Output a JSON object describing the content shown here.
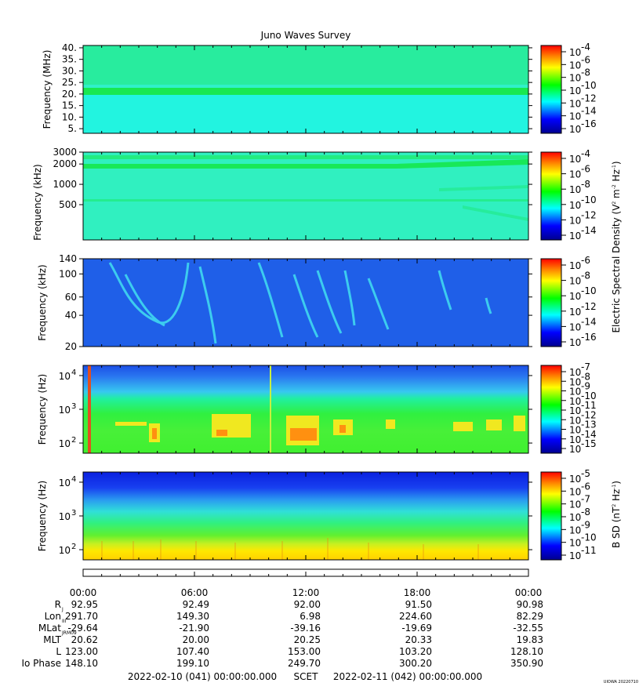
{
  "chart_data": {
    "type": "heatmap",
    "title": "Juno Waves Survey",
    "time_axis": {
      "ticks": [
        "00:00",
        "06:00",
        "12:00",
        "18:00",
        "00:00"
      ],
      "scet_start": "2022-02-10 (041) 00:00:00.000",
      "scet_label": "SCET",
      "scet_end": "2022-02-11 (042) 00:00:00.000"
    },
    "panels": [
      {
        "ylabel": "Frequency (MHz)",
        "yticks": [
          "40.",
          "35.",
          "30.",
          "25.",
          "20.",
          "15.",
          "10.",
          "5."
        ],
        "yticks_values": [
          40,
          35,
          30,
          25,
          20,
          15,
          10,
          5
        ],
        "ylim": [
          3,
          41
        ],
        "yscale": "linear",
        "colorbar_ticks": [
          "-4",
          "-6",
          "-8",
          "-10",
          "-12",
          "-14",
          "-16"
        ]
      },
      {
        "ylabel": "Frequency (kHz)",
        "yticks": [
          "3000",
          "2000",
          "1000",
          "500"
        ],
        "yticks_values": [
          3000,
          2000,
          1000,
          500
        ],
        "ylim": [
          150,
          3000
        ],
        "yscale": "log",
        "colorbar_ticks": [
          "-4",
          "-6",
          "-8",
          "-10",
          "-12",
          "-14"
        ]
      },
      {
        "ylabel": "Frequency (kHz)",
        "yticks": [
          "140",
          "100",
          "60",
          "40",
          "20"
        ],
        "yticks_values": [
          140,
          100,
          60,
          40,
          20
        ],
        "ylim": [
          20,
          140
        ],
        "yscale": "log",
        "colorbar_ticks": [
          "-6",
          "-8",
          "-10",
          "-12",
          "-14",
          "-16"
        ]
      },
      {
        "ylabel": "Frequency (Hz)",
        "yticks_exp": [
          "4",
          "3",
          "2"
        ],
        "yticks_values": [
          10000,
          1000,
          100
        ],
        "ylim": [
          50,
          20000
        ],
        "yscale": "log",
        "colorbar_ticks": [
          "-7",
          "-8",
          "-9",
          "-10",
          "-11",
          "-12",
          "-13",
          "-14",
          "-15"
        ]
      },
      {
        "ylabel": "Frequency (Hz)",
        "yticks_exp": [
          "4",
          "3",
          "2"
        ],
        "yticks_values": [
          10000,
          1000,
          100
        ],
        "ylim": [
          50,
          20000
        ],
        "yscale": "log",
        "colorbar_ticks": [
          "-5",
          "-6",
          "-7",
          "-8",
          "-9",
          "-10",
          "-11"
        ]
      }
    ],
    "colorbar_labels": {
      "electric": "Electric Spectral Density (V",
      "magnetic": "B SD (nT"
    },
    "ephemeris": {
      "rows": [
        {
          "label": "R",
          "sub": "J",
          "values": [
            "92.95",
            "92.49",
            "92.00",
            "91.50",
            "90.98"
          ]
        },
        {
          "label": "Lon",
          "sub": "III",
          "values": [
            "291.70",
            "149.30",
            "6.98",
            "224.60",
            "82.29"
          ]
        },
        {
          "label": "MLat",
          "sub": "JRM09",
          "values": [
            "-29.64",
            "-21.90",
            "-39.16",
            "-19.69",
            "-32.55"
          ]
        },
        {
          "label": "MLT",
          "sub": "",
          "values": [
            "20.62",
            "20.00",
            "20.25",
            "20.33",
            "19.83"
          ]
        },
        {
          "label": "L",
          "sub": "",
          "values": [
            "123.00",
            "107.40",
            "153.00",
            "103.20",
            "128.10"
          ]
        },
        {
          "label": "Io Phase",
          "sub": "",
          "values": [
            "148.10",
            "199.10",
            "249.70",
            "300.20",
            "350.90"
          ]
        }
      ]
    }
  },
  "footer_tag": "UIOWA 20220710",
  "colors": {
    "colormap": [
      "#00008f",
      "#0000ff",
      "#00ffff",
      "#00ff00",
      "#ffff00",
      "#ff8000",
      "#ff0000"
    ],
    "panel1_bg": "#28f0b8",
    "panel2_bg": "#30f0c0",
    "panel3_bg": "#1e5ee8"
  }
}
